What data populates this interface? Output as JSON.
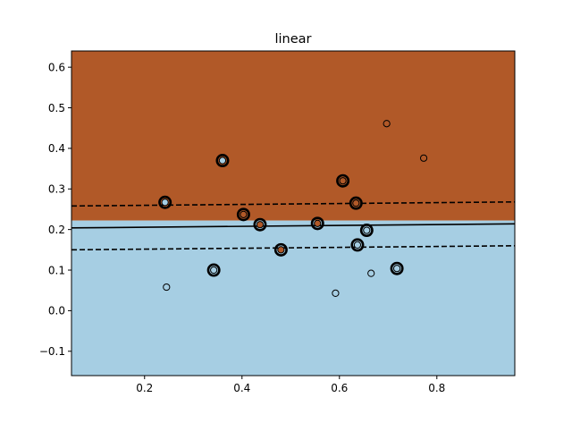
{
  "chart_data": {
    "type": "scatter",
    "title": "linear",
    "xlabel": "",
    "ylabel": "",
    "xlim": [
      0.05,
      0.96
    ],
    "ylim": [
      -0.16,
      0.64
    ],
    "x_ticks": [
      0.2,
      0.4,
      0.6,
      0.8
    ],
    "x_tick_labels": [
      "0.2",
      "0.4",
      "0.6",
      "0.8"
    ],
    "y_ticks": [
      -0.1,
      0.0,
      0.1,
      0.2,
      0.3,
      0.4,
      0.5,
      0.6
    ],
    "y_tick_labels": [
      "−0.1",
      "0.0",
      "0.1",
      "0.2",
      "0.3",
      "0.4",
      "0.5",
      "0.6"
    ],
    "colors": {
      "class_upper": "#b15928",
      "class_lower": "#a6cee3",
      "boundary": "#000000"
    },
    "region_boundary_y": 0.222,
    "decision_boundary": {
      "x": [
        0.05,
        0.96
      ],
      "y": [
        0.204,
        0.214
      ]
    },
    "margin_upper": {
      "x": [
        0.05,
        0.96
      ],
      "y": [
        0.258,
        0.268
      ]
    },
    "margin_lower": {
      "x": [
        0.05,
        0.96
      ],
      "y": [
        0.15,
        0.16
      ]
    },
    "points": [
      {
        "x": 0.242,
        "y": 0.267,
        "cls": "lower",
        "sv": true
      },
      {
        "x": 0.36,
        "y": 0.37,
        "cls": "lower",
        "sv": true
      },
      {
        "x": 0.607,
        "y": 0.32,
        "cls": "upper",
        "sv": true
      },
      {
        "x": 0.634,
        "y": 0.265,
        "cls": "upper",
        "sv": true
      },
      {
        "x": 0.403,
        "y": 0.237,
        "cls": "upper",
        "sv": true
      },
      {
        "x": 0.437,
        "y": 0.212,
        "cls": "upper",
        "sv": true
      },
      {
        "x": 0.555,
        "y": 0.215,
        "cls": "upper",
        "sv": true
      },
      {
        "x": 0.48,
        "y": 0.15,
        "cls": "upper",
        "sv": true
      },
      {
        "x": 0.342,
        "y": 0.1,
        "cls": "lower",
        "sv": true
      },
      {
        "x": 0.637,
        "y": 0.162,
        "cls": "lower",
        "sv": true
      },
      {
        "x": 0.656,
        "y": 0.198,
        "cls": "lower",
        "sv": true
      },
      {
        "x": 0.718,
        "y": 0.104,
        "cls": "lower",
        "sv": true
      },
      {
        "x": 0.697,
        "y": 0.461,
        "cls": "upper",
        "sv": false
      },
      {
        "x": 0.773,
        "y": 0.376,
        "cls": "upper",
        "sv": false
      },
      {
        "x": 0.245,
        "y": 0.058,
        "cls": "lower",
        "sv": false
      },
      {
        "x": 0.592,
        "y": 0.043,
        "cls": "lower",
        "sv": false
      },
      {
        "x": 0.665,
        "y": 0.092,
        "cls": "lower",
        "sv": false
      }
    ]
  }
}
